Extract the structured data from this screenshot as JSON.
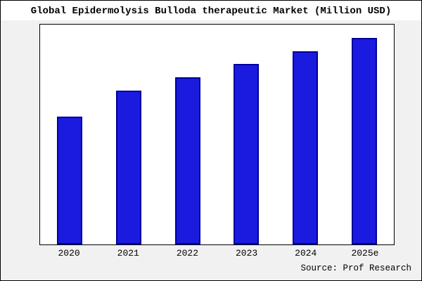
{
  "window": {
    "title": "Global Epidermolysis Bulloda therapeutic Market (Million USD)"
  },
  "chart_data": {
    "type": "bar",
    "title": "Global Epidermolysis Bulloda therapeutic Market (Million USD)",
    "categories": [
      "2020",
      "2021",
      "2022",
      "2023",
      "2024",
      "2025e"
    ],
    "values": [
      58,
      70,
      76,
      82,
      88,
      94
    ],
    "ylim": [
      0,
      100
    ],
    "value_note": "no y-axis tick labels shown; values estimated as percent of plot height",
    "xlabel": "",
    "ylabel": "",
    "grid": false,
    "legend": false,
    "bar_color": "#1b1be0",
    "bar_border_color": "#000099",
    "source": "Source: Prof Research"
  }
}
